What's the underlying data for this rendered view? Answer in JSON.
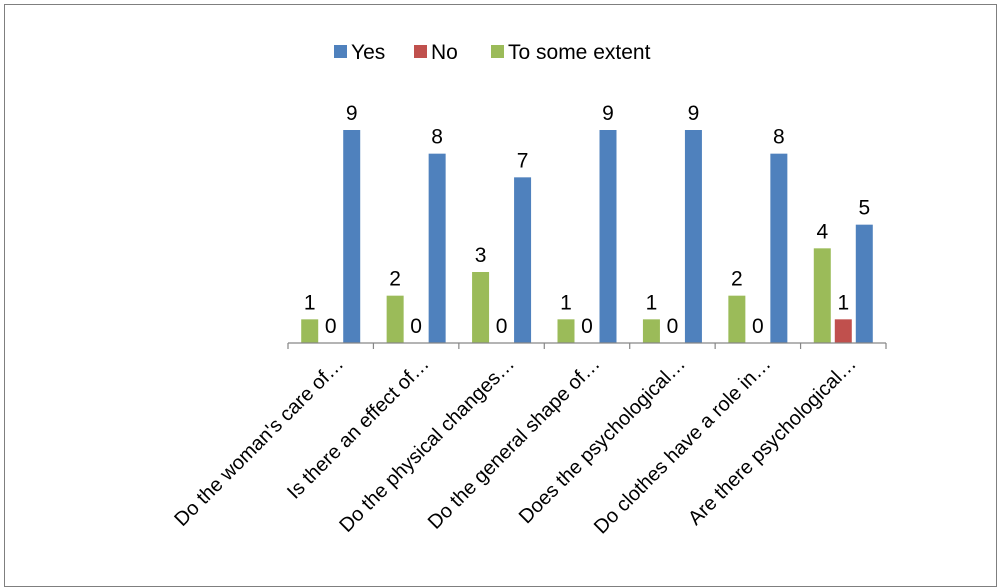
{
  "chart_data": {
    "type": "bar",
    "categories": [
      "Do the woman's care of…",
      "Is there an effect of…",
      "Do the physical changes…",
      "Do the general shape of…",
      "Does the psychological…",
      "Do clothes have a role in…",
      "Are there psychological…"
    ],
    "series": [
      {
        "name": "To some extent",
        "color": "#9bbb59",
        "values": [
          1,
          2,
          3,
          1,
          1,
          2,
          4
        ]
      },
      {
        "name": "No",
        "color": "#c0504d",
        "values": [
          0,
          0,
          0,
          0,
          0,
          0,
          1
        ]
      },
      {
        "name": "Yes",
        "color": "#4f81bd",
        "values": [
          9,
          8,
          7,
          9,
          9,
          8,
          5
        ]
      }
    ],
    "legend_order": [
      "Yes",
      "No",
      "To some extent"
    ],
    "legend_position": "top",
    "ylim": [
      0,
      9
    ],
    "grid": false,
    "data_labels": true
  }
}
